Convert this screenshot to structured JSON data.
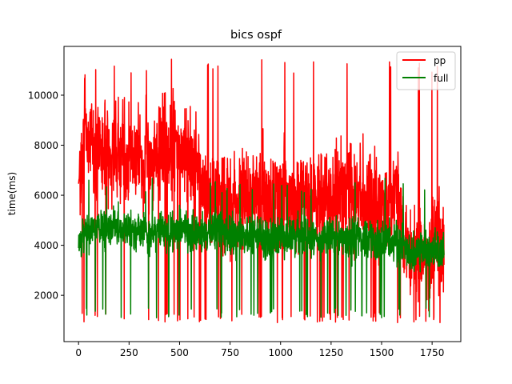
{
  "chart_data": {
    "type": "line",
    "title": "bics ospf",
    "xlabel": "",
    "ylabel": "time(ms)",
    "xlim": [
      -72,
      1892
    ],
    "ylim": [
      150,
      11950
    ],
    "xticks": [
      0,
      250,
      500,
      750,
      1000,
      1250,
      1500,
      1750
    ],
    "yticks": [
      2000,
      4000,
      6000,
      8000,
      10000
    ],
    "xtick_labels": [
      "0",
      "250",
      "500",
      "750",
      "1000",
      "1250",
      "1500",
      "1750"
    ],
    "ytick_labels": [
      "2000",
      "4000",
      "6000",
      "8000",
      "10000"
    ],
    "grid": false,
    "legend_position": "top-right",
    "n_points": 1810,
    "series": [
      {
        "name": "pp",
        "color": "#ff0000",
        "anchors": [
          [
            0,
            7300
          ],
          [
            20,
            6600
          ],
          [
            30,
            9500
          ],
          [
            40,
            7400
          ],
          [
            60,
            8700
          ],
          [
            80,
            7200
          ],
          [
            100,
            7800
          ],
          [
            120,
            7600
          ],
          [
            140,
            8100
          ],
          [
            160,
            7300
          ],
          [
            180,
            7600
          ],
          [
            200,
            7400
          ],
          [
            220,
            8000
          ],
          [
            240,
            7200
          ],
          [
            260,
            7700
          ],
          [
            280,
            7500
          ],
          [
            300,
            7800
          ],
          [
            320,
            7200
          ],
          [
            340,
            7600
          ],
          [
            360,
            7400
          ],
          [
            380,
            7700
          ],
          [
            400,
            7900
          ],
          [
            420,
            8100
          ],
          [
            440,
            7800
          ],
          [
            460,
            8000
          ],
          [
            480,
            8300
          ],
          [
            500,
            7700
          ],
          [
            520,
            7900
          ],
          [
            540,
            7600
          ],
          [
            560,
            7400
          ],
          [
            580,
            7700
          ],
          [
            600,
            6900
          ],
          [
            620,
            6100
          ],
          [
            640,
            6300
          ],
          [
            660,
            5600
          ],
          [
            680,
            5900
          ],
          [
            700,
            6100
          ],
          [
            720,
            5600
          ],
          [
            740,
            5900
          ],
          [
            760,
            5500
          ],
          [
            780,
            6100
          ],
          [
            800,
            6400
          ],
          [
            820,
            6300
          ],
          [
            840,
            5900
          ],
          [
            860,
            6200
          ],
          [
            880,
            6000
          ],
          [
            900,
            6100
          ],
          [
            920,
            6300
          ],
          [
            940,
            5700
          ],
          [
            960,
            6000
          ],
          [
            980,
            6200
          ],
          [
            1000,
            5800
          ],
          [
            1020,
            6100
          ],
          [
            1040,
            5600
          ],
          [
            1060,
            6000
          ],
          [
            1080,
            5700
          ],
          [
            1100,
            5900
          ],
          [
            1120,
            6200
          ],
          [
            1140,
            5800
          ],
          [
            1160,
            5900
          ],
          [
            1180,
            6200
          ],
          [
            1200,
            5900
          ],
          [
            1220,
            6100
          ],
          [
            1240,
            5700
          ],
          [
            1260,
            6000
          ],
          [
            1280,
            6300
          ],
          [
            1300,
            6100
          ],
          [
            1320,
            5800
          ],
          [
            1340,
            6200
          ],
          [
            1360,
            5900
          ],
          [
            1380,
            5800
          ],
          [
            1400,
            6000
          ],
          [
            1420,
            5900
          ],
          [
            1440,
            5700
          ],
          [
            1460,
            6300
          ],
          [
            1480,
            5500
          ],
          [
            1500,
            5800
          ],
          [
            1520,
            5600
          ],
          [
            1540,
            5900
          ],
          [
            1560,
            6100
          ],
          [
            1580,
            5800
          ],
          [
            1600,
            5200
          ],
          [
            1620,
            3800
          ],
          [
            1640,
            3500
          ],
          [
            1660,
            3700
          ],
          [
            1680,
            3300
          ],
          [
            1700,
            3600
          ],
          [
            1720,
            3400
          ],
          [
            1740,
            3900
          ],
          [
            1760,
            3700
          ],
          [
            1780,
            4100
          ],
          [
            1800,
            3800
          ],
          [
            1809,
            4300
          ]
        ],
        "amplitude": 2800,
        "min": 700,
        "max": 11450,
        "dip_probability": 0.045,
        "dip_level": 900,
        "seed": 7
      },
      {
        "name": "full",
        "color": "#008000",
        "anchors": [
          [
            0,
            4400
          ],
          [
            50,
            4500
          ],
          [
            100,
            4700
          ],
          [
            150,
            4600
          ],
          [
            200,
            4800
          ],
          [
            250,
            4600
          ],
          [
            300,
            4700
          ],
          [
            350,
            4500
          ],
          [
            400,
            4600
          ],
          [
            450,
            4500
          ],
          [
            500,
            4700
          ],
          [
            550,
            4500
          ],
          [
            600,
            4400
          ],
          [
            650,
            4500
          ],
          [
            700,
            4600
          ],
          [
            750,
            4400
          ],
          [
            800,
            4300
          ],
          [
            850,
            4400
          ],
          [
            900,
            4500
          ],
          [
            950,
            4300
          ],
          [
            1000,
            4400
          ],
          [
            1050,
            4300
          ],
          [
            1100,
            4400
          ],
          [
            1150,
            4300
          ],
          [
            1200,
            4200
          ],
          [
            1250,
            4400
          ],
          [
            1300,
            4300
          ],
          [
            1350,
            4200
          ],
          [
            1400,
            4300
          ],
          [
            1450,
            4200
          ],
          [
            1500,
            4100
          ],
          [
            1550,
            4200
          ],
          [
            1600,
            4000
          ],
          [
            1650,
            3600
          ],
          [
            1700,
            3800
          ],
          [
            1750,
            3700
          ],
          [
            1809,
            4000
          ]
        ],
        "amplitude": 1150,
        "min": 800,
        "max": 6700,
        "dip_probability": 0.03,
        "dip_level": 1100,
        "seed": 19
      }
    ]
  }
}
